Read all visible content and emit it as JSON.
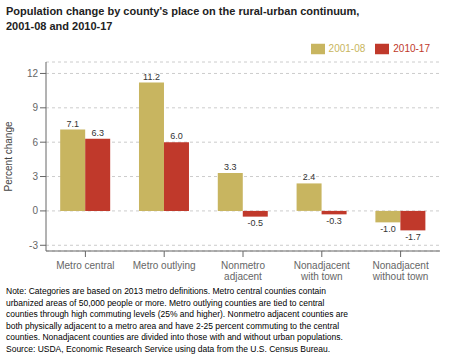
{
  "chart_data": {
    "type": "bar",
    "title": "Population change by county's place on the rural-urban continuum,\n2001-08 and 2010-17",
    "categories": [
      "Metro central",
      "Metro outlying",
      "Nonmetro\nadjacent",
      "Nonadjacent\nwith town",
      "Nonadjacent\nwithout town"
    ],
    "series": [
      {
        "name": "2001-08",
        "color": "#C8B560",
        "values": [
          7.1,
          11.2,
          3.3,
          2.4,
          -1.0
        ],
        "value_labels": [
          "7.1",
          "11.2",
          "3.3",
          "2.4",
          "-1.0"
        ]
      },
      {
        "name": "2010-17",
        "color": "#C0392B",
        "values": [
          6.3,
          6.0,
          -0.5,
          -0.3,
          -1.7
        ],
        "value_labels": [
          "6.3",
          "6.0",
          "-0.5",
          "-0.3",
          "-1.7"
        ]
      }
    ],
    "ylabel": "Percent change",
    "ylim": [
      -3.5,
      13
    ],
    "yticks": [
      -3,
      0,
      3,
      6,
      9,
      12
    ],
    "grid": true,
    "legend": "upper right",
    "data_labels": true,
    "annotations": [
      "Note: Categories are based on 2013 metro definitions. Metro central counties contain\nurbanized areas of 50,000 people or more. Metro outlying counties are tied to central\ncounties through high commuting levels (25% and higher). Nonmetro adjacent counties are\nboth physically adjacent to a metro area and have 2-25 percent commuting to the central\ncounties. Nonadjacent counties are divided into those with and without urban populations.\nSource: USDA, Economic Research Service using data from the U.S. Census Bureau."
    ]
  }
}
